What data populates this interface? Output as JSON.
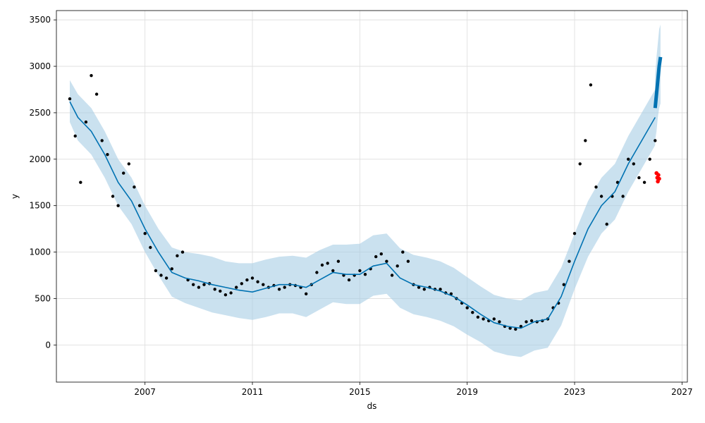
{
  "chart_data": {
    "type": "scatter",
    "xlabel": "ds",
    "ylabel": "y",
    "xlim": [
      2003.7,
      2027.2
    ],
    "ylim": [
      -400,
      3600
    ],
    "x_ticks": [
      2007,
      2011,
      2015,
      2019,
      2023,
      2027
    ],
    "x_tick_labels": [
      "2007",
      "2011",
      "2015",
      "2019",
      "2023",
      "2027"
    ],
    "y_ticks": [
      0,
      500,
      1000,
      1500,
      2000,
      2500,
      3000,
      3500
    ],
    "y_tick_labels": [
      "0",
      "500",
      "1000",
      "1500",
      "2000",
      "2500",
      "3000",
      "3500"
    ],
    "grid": true,
    "colors": {
      "observed": "#000000",
      "forecast": "#0072B2",
      "interval": "#a6cde4",
      "recent": "#ff0000"
    },
    "series": [
      {
        "role": "observed",
        "x": [
          2004.2,
          2004.4,
          2004.6,
          2004.8,
          2005.0,
          2005.2,
          2005.4,
          2005.6,
          2005.8,
          2006.0,
          2006.2,
          2006.4,
          2006.6,
          2006.8,
          2007.0,
          2007.2,
          2007.4,
          2007.6,
          2007.8,
          2008.0,
          2008.2,
          2008.4,
          2008.6,
          2008.8,
          2009.0,
          2009.2,
          2009.4,
          2009.6,
          2009.8,
          2010.0,
          2010.2,
          2010.4,
          2010.6,
          2010.8,
          2011.0,
          2011.2,
          2011.4,
          2011.6,
          2011.8,
          2012.0,
          2012.2,
          2012.4,
          2012.6,
          2012.8,
          2013.0,
          2013.2,
          2013.4,
          2013.6,
          2013.8,
          2014.0,
          2014.2,
          2014.4,
          2014.6,
          2014.8,
          2015.0,
          2015.2,
          2015.4,
          2015.6,
          2015.8,
          2016.0,
          2016.2,
          2016.4,
          2016.6,
          2016.8,
          2017.0,
          2017.2,
          2017.4,
          2017.6,
          2017.8,
          2018.0,
          2018.2,
          2018.4,
          2018.6,
          2018.8,
          2019.0,
          2019.2,
          2019.4,
          2019.6,
          2019.8,
          2020.0,
          2020.2,
          2020.4,
          2020.6,
          2020.8,
          2021.0,
          2021.2,
          2021.4,
          2021.6,
          2021.8,
          2022.0,
          2022.2,
          2022.4,
          2022.6,
          2022.8,
          2023.0,
          2023.2,
          2023.4,
          2023.6,
          2023.8,
          2024.0,
          2024.2,
          2024.4,
          2024.6,
          2024.8,
          2025.0,
          2025.2,
          2025.4,
          2025.6,
          2025.8,
          2026.0
        ],
        "y": [
          2650,
          2250,
          1750,
          2400,
          2900,
          2700,
          2200,
          2050,
          1600,
          1500,
          1850,
          1950,
          1700,
          1500,
          1200,
          1050,
          800,
          750,
          720,
          820,
          960,
          1000,
          700,
          650,
          620,
          650,
          660,
          600,
          580,
          540,
          560,
          620,
          660,
          700,
          720,
          680,
          650,
          620,
          640,
          600,
          620,
          650,
          640,
          620,
          550,
          650,
          780,
          860,
          880,
          800,
          900,
          750,
          700,
          750,
          800,
          760,
          820,
          950,
          980,
          900,
          750,
          850,
          1000,
          900,
          650,
          620,
          600,
          620,
          600,
          600,
          560,
          550,
          500,
          450,
          400,
          350,
          300,
          280,
          260,
          280,
          250,
          200,
          180,
          170,
          200,
          250,
          260,
          250,
          260,
          280,
          400,
          450,
          650,
          900,
          1200,
          1950,
          2200,
          2800,
          1700,
          1600,
          1300,
          1600,
          1750,
          1600,
          2000,
          1950,
          1800,
          1750,
          2000,
          2200
        ]
      },
      {
        "role": "forecast",
        "x": [
          2004.2,
          2004.5,
          2005.0,
          2005.5,
          2006.0,
          2006.5,
          2007.0,
          2007.5,
          2008.0,
          2008.5,
          2009.0,
          2009.5,
          2010.0,
          2010.5,
          2011.0,
          2011.5,
          2012.0,
          2012.5,
          2013.0,
          2013.5,
          2014.0,
          2014.5,
          2015.0,
          2015.5,
          2016.0,
          2016.5,
          2017.0,
          2017.5,
          2018.0,
          2018.5,
          2019.0,
          2019.5,
          2020.0,
          2020.5,
          2021.0,
          2021.5,
          2022.0,
          2022.5,
          2023.0,
          2023.5,
          2024.0,
          2024.5,
          2025.0,
          2025.5,
          2026.0
        ],
        "y": [
          2620,
          2450,
          2300,
          2050,
          1750,
          1550,
          1250,
          1000,
          780,
          720,
          690,
          650,
          620,
          590,
          570,
          610,
          650,
          650,
          620,
          700,
          780,
          760,
          760,
          850,
          880,
          720,
          650,
          620,
          580,
          520,
          430,
          330,
          240,
          200,
          180,
          250,
          280,
          520,
          900,
          1250,
          1500,
          1650,
          1950,
          2200,
          2450
        ]
      },
      {
        "role": "interval_upper",
        "y": [
          2850,
          2700,
          2550,
          2300,
          2000,
          1800,
          1500,
          1250,
          1050,
          1000,
          980,
          950,
          900,
          880,
          880,
          920,
          950,
          960,
          940,
          1020,
          1080,
          1080,
          1090,
          1180,
          1200,
          1040,
          970,
          940,
          900,
          830,
          730,
          630,
          540,
          500,
          480,
          560,
          590,
          830,
          1200,
          1550,
          1800,
          1950,
          2250,
          2500,
          2750
        ]
      },
      {
        "role": "interval_lower",
        "y": [
          2400,
          2200,
          2050,
          1800,
          1500,
          1300,
          1000,
          750,
          520,
          450,
          400,
          350,
          320,
          290,
          270,
          300,
          340,
          340,
          300,
          380,
          460,
          440,
          440,
          530,
          550,
          400,
          330,
          300,
          260,
          200,
          110,
          30,
          -70,
          -110,
          -130,
          -60,
          -30,
          210,
          600,
          950,
          1200,
          1350,
          1650,
          1900,
          2150
        ]
      },
      {
        "role": "future_forecast",
        "x": [
          2026.0,
          2026.05,
          2026.1,
          2026.15,
          2026.2
        ],
        "y": [
          2550,
          2700,
          2850,
          3000,
          3100
        ],
        "upper": [
          2900,
          3100,
          3250,
          3400,
          3450
        ],
        "lower": [
          2200,
          2300,
          2450,
          2550,
          2600
        ]
      },
      {
        "role": "recent",
        "x": [
          2026.05,
          2026.08,
          2026.1,
          2026.12,
          2026.15
        ],
        "y": [
          1850,
          1800,
          1760,
          1830,
          1790
        ]
      }
    ]
  }
}
